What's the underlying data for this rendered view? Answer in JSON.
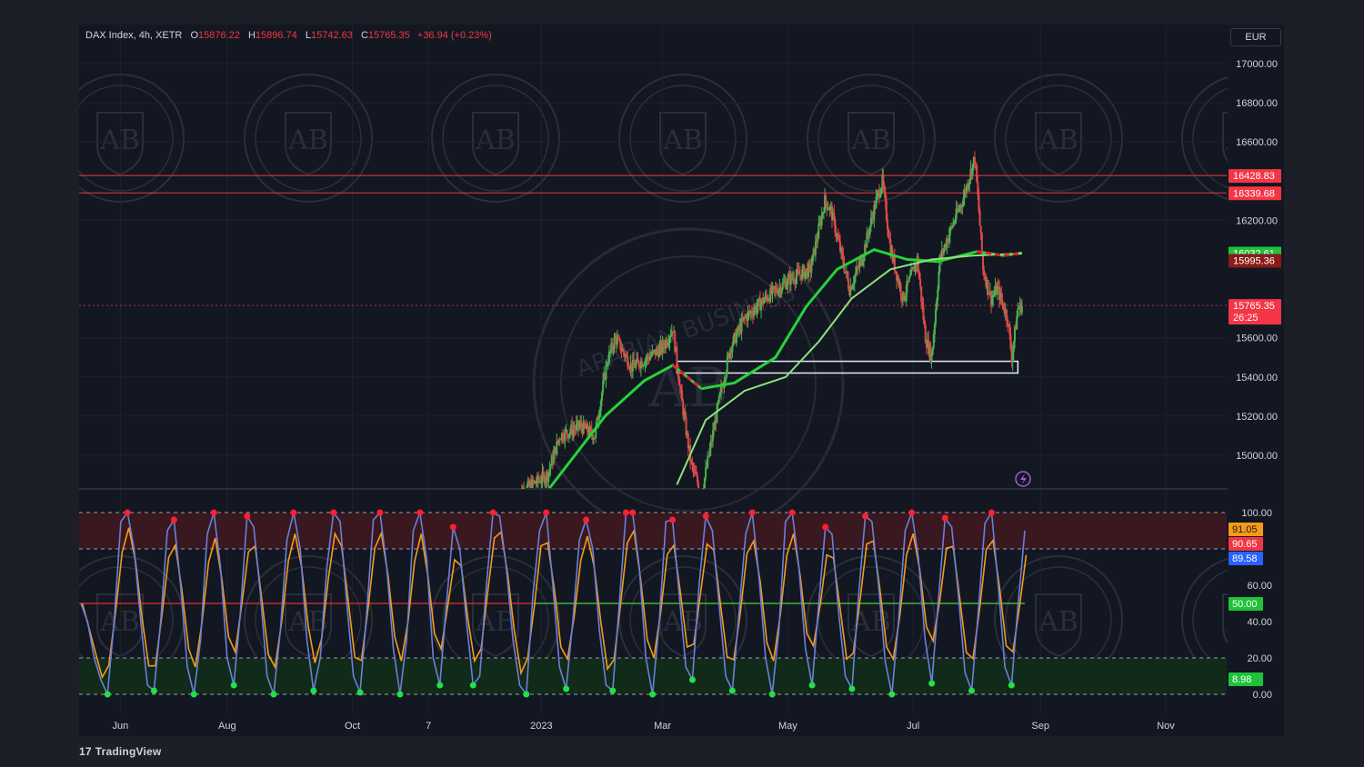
{
  "header": {
    "symbol": "DAX Index, 4h, XETR",
    "open_label": "O",
    "open": "15876.22",
    "high_label": "H",
    "high": "15896.74",
    "low_label": "L",
    "low": "15742.63",
    "close_label": "C",
    "close": "15765.35",
    "change": "+36.94 (+0.23%)"
  },
  "currency": "EUR",
  "footer": {
    "brand": "TradingView"
  },
  "watermark": {
    "text": "ARABIAN BUSINESS",
    "initials": "AB"
  },
  "colors": {
    "background": "#131722",
    "grid": "#1e2230",
    "resistance_line": "#f23645",
    "ma_fast": "#27d23a",
    "ma_slow": "#8be27a",
    "ma_red": "#e0202a",
    "candle_up": "#4caf50",
    "candle_down": "#e04848",
    "stoch_k": "#6a80d8",
    "stoch_d": "#f59b1a",
    "dot_high": "#ff1f2f",
    "dot_low": "#22e04a",
    "overbought_zone": "#3a1820",
    "oversold_zone": "#122a1a"
  },
  "chart_data": [
    {
      "type": "candlestick",
      "title": "DAX Index, 4h, XETR",
      "ylabel": "EUR",
      "ylim": [
        14800,
        17100
      ],
      "y_ticks": [
        "17000.00",
        "16800.00",
        "16600.00",
        "16200.00",
        "15600.00",
        "15400.00",
        "15200.00",
        "15000.00"
      ],
      "x_ticks": [
        "Jun",
        "Aug",
        "Oct",
        "7",
        "2023",
        "Mar",
        "May",
        "Jul",
        "Sep",
        "Nov"
      ],
      "horizontal_lines": [
        {
          "value": 16428.83,
          "label": "16428.83",
          "color": "#f23645"
        },
        {
          "value": 16339.68,
          "label": "16339.68",
          "color": "#f23645"
        }
      ],
      "price_tags": [
        {
          "value": 16032.61,
          "label": "16032.61",
          "bg": "#1fc23b"
        },
        {
          "value": 15995.36,
          "label": "15995.36",
          "bg": "#8b1a1a"
        },
        {
          "value": 15765.35,
          "label": "15765.35",
          "sublabel": "26:25",
          "bg": "#f23645"
        }
      ],
      "support_box": {
        "from": "2023-03-08",
        "to": "2023-08-21",
        "low": 15420,
        "high": 15480
      },
      "price_path": [
        {
          "x": "2022-12-20",
          "y": 14800
        },
        {
          "x": "2023-01-04",
          "y": 14900
        },
        {
          "x": "2023-01-10",
          "y": 15100
        },
        {
          "x": "2023-01-20",
          "y": 15150
        },
        {
          "x": "2023-01-27",
          "y": 15100
        },
        {
          "x": "2023-02-02",
          "y": 15480
        },
        {
          "x": "2023-02-06",
          "y": 15600
        },
        {
          "x": "2023-02-14",
          "y": 15450
        },
        {
          "x": "2023-02-22",
          "y": 15500
        },
        {
          "x": "2023-03-01",
          "y": 15550
        },
        {
          "x": "2023-03-06",
          "y": 15650
        },
        {
          "x": "2023-03-10",
          "y": 15300
        },
        {
          "x": "2023-03-15",
          "y": 14950
        },
        {
          "x": "2023-03-20",
          "y": 14800
        },
        {
          "x": "2023-03-28",
          "y": 15250
        },
        {
          "x": "2023-04-03",
          "y": 15550
        },
        {
          "x": "2023-04-10",
          "y": 15700
        },
        {
          "x": "2023-04-20",
          "y": 15800
        },
        {
          "x": "2023-05-02",
          "y": 15900
        },
        {
          "x": "2023-05-12",
          "y": 15950
        },
        {
          "x": "2023-05-19",
          "y": 16300
        },
        {
          "x": "2023-05-22",
          "y": 16250
        },
        {
          "x": "2023-05-31",
          "y": 15850
        },
        {
          "x": "2023-06-06",
          "y": 16000
        },
        {
          "x": "2023-06-13",
          "y": 16300
        },
        {
          "x": "2023-06-16",
          "y": 16400
        },
        {
          "x": "2023-06-20",
          "y": 16050
        },
        {
          "x": "2023-06-26",
          "y": 15800
        },
        {
          "x": "2023-07-03",
          "y": 16000
        },
        {
          "x": "2023-07-07",
          "y": 15600
        },
        {
          "x": "2023-07-10",
          "y": 15500
        },
        {
          "x": "2023-07-14",
          "y": 16000
        },
        {
          "x": "2023-07-21",
          "y": 16200
        },
        {
          "x": "2023-07-25",
          "y": 16300
        },
        {
          "x": "2023-07-31",
          "y": 16520
        },
        {
          "x": "2023-08-02",
          "y": 16250
        },
        {
          "x": "2023-08-04",
          "y": 15950
        },
        {
          "x": "2023-08-08",
          "y": 15800
        },
        {
          "x": "2023-08-11",
          "y": 15850
        },
        {
          "x": "2023-08-16",
          "y": 15700
        },
        {
          "x": "2023-08-18",
          "y": 15500
        },
        {
          "x": "2023-08-21",
          "y": 15750
        },
        {
          "x": "2023-08-23",
          "y": 15765
        }
      ],
      "moving_averages": [
        {
          "color": "#27d23a",
          "points": [
            {
              "x": "2023-01-05",
              "y": 14820
            },
            {
              "x": "2023-02-01",
              "y": 15200
            },
            {
              "x": "2023-02-20",
              "y": 15380
            },
            {
              "x": "2023-03-06",
              "y": 15460
            },
            {
              "x": "2023-03-20",
              "y": 15340
            },
            {
              "x": "2023-04-05",
              "y": 15370
            },
            {
              "x": "2023-04-25",
              "y": 15500
            },
            {
              "x": "2023-05-10",
              "y": 15760
            },
            {
              "x": "2023-05-25",
              "y": 15950
            },
            {
              "x": "2023-06-12",
              "y": 16050
            },
            {
              "x": "2023-06-28",
              "y": 16000
            },
            {
              "x": "2023-07-13",
              "y": 15990
            },
            {
              "x": "2023-08-01",
              "y": 16040
            },
            {
              "x": "2023-08-14",
              "y": 16020
            },
            {
              "x": "2023-08-23",
              "y": 16033
            }
          ]
        },
        {
          "color": "#8be27a",
          "points": [
            {
              "x": "2023-03-08",
              "y": 14850
            },
            {
              "x": "2023-03-22",
              "y": 15180
            },
            {
              "x": "2023-04-10",
              "y": 15330
            },
            {
              "x": "2023-04-30",
              "y": 15400
            },
            {
              "x": "2023-05-16",
              "y": 15580
            },
            {
              "x": "2023-06-01",
              "y": 15800
            },
            {
              "x": "2023-06-20",
              "y": 15950
            },
            {
              "x": "2023-07-10",
              "y": 16000
            },
            {
              "x": "2023-07-30",
              "y": 16020
            },
            {
              "x": "2023-08-23",
              "y": 16030
            }
          ]
        }
      ]
    },
    {
      "type": "line",
      "title": "",
      "ylim": [
        0,
        100
      ],
      "y_ticks": [
        "100.00",
        "60.00",
        "40.00",
        "20.00",
        "0.00"
      ],
      "zones": [
        {
          "from": 80,
          "to": 100,
          "color": "#3a1820"
        },
        {
          "from": 0,
          "to": 20,
          "color": "#122a1a"
        }
      ],
      "reference_lines": [
        {
          "value": 100,
          "style": "dashed"
        },
        {
          "value": 80,
          "style": "dashed"
        },
        {
          "value": 50,
          "color": "#e03030"
        },
        {
          "value": 20,
          "style": "dashed"
        },
        {
          "value": 0,
          "style": "dashed"
        }
      ],
      "value_tags": [
        {
          "value": 91.05,
          "label": "91.05",
          "bg": "#f59b1a"
        },
        {
          "value": 90.65,
          "label": "90.65",
          "bg": "#f23645"
        },
        {
          "value": 89.58,
          "label": "89.58",
          "bg": "#2962ff"
        },
        {
          "value": 50.0,
          "label": "50.00",
          "bg": "#1fc23b"
        },
        {
          "value": 8.98,
          "label": "8.98",
          "bg": "#1fc23b"
        }
      ],
      "series": [
        {
          "values": [
            50,
            40,
            20,
            8,
            0,
            40,
            95,
            100,
            80,
            40,
            5,
            2,
            40,
            90,
            96,
            60,
            15,
            0,
            30,
            88,
            100,
            70,
            20,
            5,
            45,
            98,
            92,
            55,
            10,
            0,
            35,
            85,
            100,
            80,
            30,
            2,
            20,
            70,
            100,
            95,
            50,
            10,
            1,
            45,
            96,
            100,
            70,
            25,
            0,
            30,
            90,
            100,
            75,
            20,
            5,
            50,
            92,
            80,
            40,
            5,
            10,
            60,
            100,
            98,
            70,
            30,
            5,
            0,
            55,
            90,
            100,
            60,
            15,
            3,
            40,
            85,
            96,
            80,
            35,
            5,
            2,
            50,
            100,
            100,
            70,
            20,
            0,
            40,
            95,
            96,
            55,
            15,
            8,
            60,
            98,
            90,
            50,
            10,
            2,
            45,
            88,
            100,
            65,
            20,
            0,
            35,
            95,
            100,
            70,
            25,
            5,
            50,
            92,
            88,
            45,
            10,
            3,
            55,
            98,
            95,
            60,
            18,
            0,
            40,
            90,
            100,
            75,
            30,
            6,
            52,
            97,
            92,
            55,
            12,
            2,
            45,
            94,
            100,
            60,
            15,
            5,
            50,
            90
          ]
        }
      ]
    }
  ]
}
